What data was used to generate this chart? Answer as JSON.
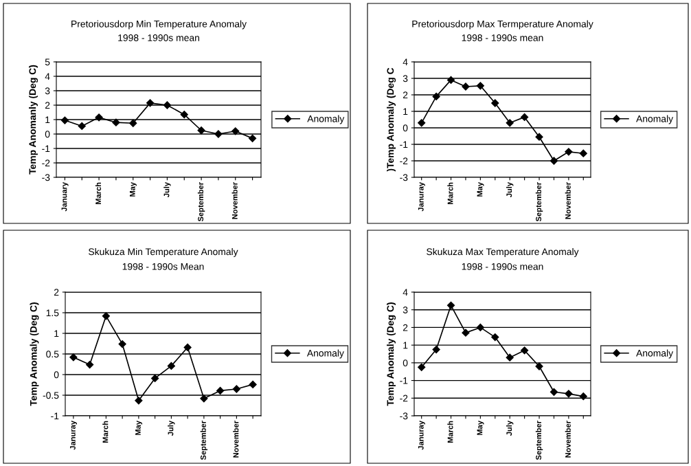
{
  "chart_data": [
    {
      "type": "line",
      "title": "Pretoriousdorp Min Temperature Anomaly",
      "subtitle": "1998 - 1990s mean",
      "ylabel": "Temp Anomanly (Deg C)",
      "categories": [
        "January",
        null,
        "March",
        null,
        "May",
        null,
        "July",
        null,
        "September",
        null,
        "November",
        null
      ],
      "series": [
        {
          "name": "Anomaly",
          "color": "#000000",
          "values": [
            0.95,
            0.55,
            1.15,
            0.8,
            0.75,
            2.15,
            2.0,
            1.35,
            0.25,
            0.0,
            0.2,
            -0.3
          ]
        }
      ],
      "ylim": [
        -3,
        5
      ],
      "yticks": [
        -3,
        -2,
        -1,
        0,
        1,
        2,
        3,
        4,
        5
      ],
      "grid": "y",
      "legend": "right",
      "marker": "diamond",
      "line_style": "solid"
    },
    {
      "type": "line",
      "title": "Pretoriousdorp Max Termperature Anomaly",
      "subtitle": "1998 - 1990s mean",
      "ylabel": ")Temp Anomaly (Deg C",
      "categories": [
        "Januray",
        null,
        "March",
        null,
        "May",
        null,
        "July",
        null,
        "September",
        null,
        "November",
        null
      ],
      "series": [
        {
          "name": "Anomaly",
          "color": "#000000",
          "values": [
            0.3,
            1.9,
            2.9,
            2.5,
            2.55,
            1.5,
            0.3,
            0.65,
            -0.55,
            -2.0,
            -1.45,
            -1.55
          ]
        }
      ],
      "ylim": [
        -3,
        4
      ],
      "yticks": [
        -3,
        -2,
        -1,
        0,
        1,
        2,
        3,
        4
      ],
      "grid": "y",
      "legend": "right",
      "marker": "diamond",
      "line_style": "solid"
    },
    {
      "type": "line",
      "title": "Skukuza Min Temperature Anomaly",
      "subtitle": "1998 - 1990s Mean",
      "ylabel": "Temp Anomaly (Deg C)",
      "categories": [
        "Januray",
        null,
        "March",
        null,
        "May",
        null,
        "July",
        null,
        "September",
        null,
        "November",
        null
      ],
      "series": [
        {
          "name": "Anomaly",
          "color": "#000000",
          "values": [
            0.42,
            0.24,
            1.42,
            0.74,
            -0.63,
            -0.09,
            0.21,
            0.66,
            -0.58,
            -0.39,
            -0.35,
            -0.24
          ]
        }
      ],
      "ylim": [
        -1,
        2
      ],
      "yticks": [
        -1,
        -0.5,
        0,
        0.5,
        1,
        1.5,
        2
      ],
      "grid": "y",
      "legend": "right",
      "marker": "diamond",
      "line_style": "solid"
    },
    {
      "type": "line",
      "title": "Skukuza Max Temperature Anomaly",
      "subtitle": "1998 - 1990s mean",
      "ylabel": "Temp Anomaly (Deg C)",
      "categories": [
        "Januray",
        null,
        "March",
        null,
        "May",
        null,
        "July",
        null,
        "September",
        null,
        "November",
        null
      ],
      "series": [
        {
          "name": "Anomaly",
          "color": "#000000",
          "values": [
            -0.25,
            0.75,
            3.25,
            1.7,
            2.0,
            1.45,
            0.3,
            0.7,
            -0.2,
            -1.65,
            -1.75,
            -1.9
          ]
        }
      ],
      "ylim": [
        -3,
        4
      ],
      "yticks": [
        -3,
        -2,
        -1,
        0,
        1,
        2,
        3,
        4
      ],
      "grid": "y",
      "legend": "right",
      "marker": "diamond",
      "line_style": "solid"
    }
  ]
}
